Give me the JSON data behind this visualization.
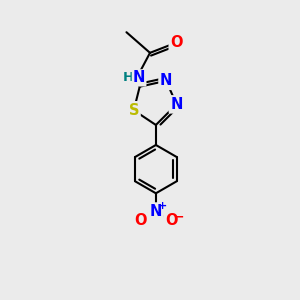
{
  "bg_color": "#ebebeb",
  "bond_color": "#000000",
  "bond_width": 1.5,
  "atom_colors": {
    "O": "#ff0000",
    "N": "#0000ff",
    "S": "#bbbb00",
    "H": "#008080",
    "C": "#000000"
  },
  "font_size": 10.5,
  "fig_size": [
    3.0,
    3.0
  ]
}
